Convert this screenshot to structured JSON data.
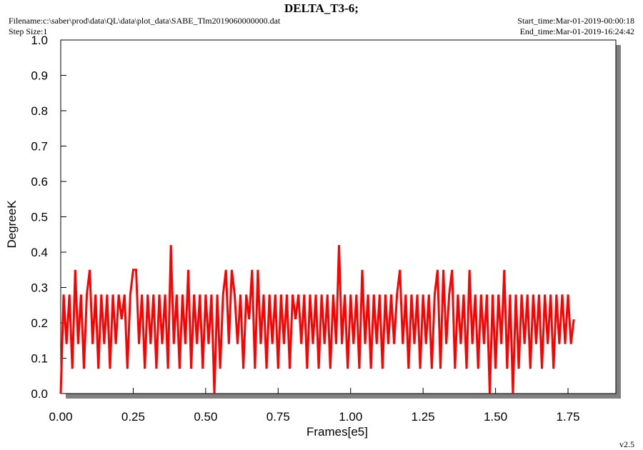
{
  "chart_data": {
    "type": "line",
    "title": "DELTA_T3-6;",
    "filename": "Filename:c:\\saber\\prod\\data\\QL\\data\\plot_data\\SABE_Tlm2019060000000.dat",
    "step_size": "Step Size:1",
    "start_time": "Start_time:Mar-01-2019-00:00:18",
    "end_time": "End_time:Mar-01-2019-16:24:42",
    "version": "v2.5",
    "x_label": "Frames[e5]",
    "y_label": "DegreeK",
    "xlim": [
      0,
      1.915
    ],
    "ylim": [
      0,
      1
    ],
    "xticks": [
      {
        "value": 0,
        "label": "0.00"
      },
      {
        "value": 0.25,
        "label": "0.25"
      },
      {
        "value": 0.5,
        "label": "0.50"
      },
      {
        "value": 0.75,
        "label": "0.75"
      },
      {
        "value": 1,
        "label": "1.00"
      },
      {
        "value": 1.25,
        "label": "1.25"
      },
      {
        "value": 1.5,
        "label": "1.50"
      },
      {
        "value": 1.75,
        "label": "1.75"
      }
    ],
    "yticks": [
      {
        "value": 0,
        "label": "0.0"
      },
      0.1,
      0.2,
      0.3,
      0.4,
      0.5,
      0.6,
      0.7,
      0.8,
      0.9,
      {
        "value": 1,
        "label": "1.0"
      }
    ],
    "series": [
      {
        "color": "#ff0000",
        "x": [
          0,
          0.01,
          0.02,
          0.03,
          0.04,
          0.05,
          0.06,
          0.07,
          0.08,
          0.09,
          0.1,
          0.11,
          0.12,
          0.13,
          0.14,
          0.15,
          0.16,
          0.17,
          0.18,
          0.19,
          0.2,
          0.21,
          0.22,
          0.23,
          0.24,
          0.25,
          0.26,
          0.27,
          0.28,
          0.29,
          0.3,
          0.31,
          0.32,
          0.33,
          0.34,
          0.35,
          0.36,
          0.37,
          0.38,
          0.39,
          0.4,
          0.41,
          0.42,
          0.43,
          0.44,
          0.45,
          0.46,
          0.47,
          0.48,
          0.49,
          0.5,
          0.51,
          0.52,
          0.53,
          0.54,
          0.55,
          0.56,
          0.57,
          0.58,
          0.59,
          0.6,
          0.61,
          0.62,
          0.63,
          0.64,
          0.65,
          0.66,
          0.67,
          0.68,
          0.69,
          0.7,
          0.71,
          0.72,
          0.73,
          0.74,
          0.75,
          0.76,
          0.77,
          0.78,
          0.79,
          0.8,
          0.81,
          0.82,
          0.83,
          0.84,
          0.85,
          0.86,
          0.87,
          0.88,
          0.89,
          0.9,
          0.91,
          0.92,
          0.93,
          0.94,
          0.95,
          0.96,
          0.97,
          0.98,
          0.99,
          1,
          1.01,
          1.02,
          1.03,
          1.04,
          1.05,
          1.06,
          1.07,
          1.08,
          1.09,
          1.1,
          1.11,
          1.12,
          1.13,
          1.14,
          1.15,
          1.16,
          1.17,
          1.18,
          1.19,
          1.2,
          1.21,
          1.22,
          1.23,
          1.24,
          1.25,
          1.26,
          1.27,
          1.28,
          1.29,
          1.3,
          1.31,
          1.32,
          1.33,
          1.34,
          1.35,
          1.36,
          1.37,
          1.38,
          1.39,
          1.4,
          1.41,
          1.42,
          1.43,
          1.44,
          1.45,
          1.46,
          1.47,
          1.48,
          1.49,
          1.5,
          1.51,
          1.52,
          1.53,
          1.54,
          1.55,
          1.56,
          1.57,
          1.58,
          1.59,
          1.6,
          1.61,
          1.62,
          1.63,
          1.64,
          1.65,
          1.66,
          1.67,
          1.68,
          1.69,
          1.7,
          1.71,
          1.72,
          1.73,
          1.74,
          1.75,
          1.76,
          1.77
        ],
        "values": [
          0.0,
          0.28,
          0.14,
          0.28,
          0.07,
          0.35,
          0.14,
          0.28,
          0.07,
          0.28,
          0.35,
          0.14,
          0.28,
          0.07,
          0.28,
          0.14,
          0.28,
          0.07,
          0.28,
          0.14,
          0.28,
          0.21,
          0.28,
          0.07,
          0.28,
          0.35,
          0.35,
          0.14,
          0.28,
          0.07,
          0.28,
          0.14,
          0.28,
          0.07,
          0.28,
          0.14,
          0.28,
          0.07,
          0.42,
          0.14,
          0.28,
          0.07,
          0.28,
          0.14,
          0.35,
          0.07,
          0.28,
          0.14,
          0.28,
          0.07,
          0.28,
          0.14,
          0.28,
          0.0,
          0.28,
          0.07,
          0.28,
          0.35,
          0.14,
          0.35,
          0.28,
          0.14,
          0.28,
          0.07,
          0.28,
          0.21,
          0.35,
          0.07,
          0.35,
          0.14,
          0.28,
          0.07,
          0.28,
          0.14,
          0.28,
          0.07,
          0.28,
          0.14,
          0.28,
          0.07,
          0.28,
          0.21,
          0.28,
          0.14,
          0.28,
          0.07,
          0.28,
          0.14,
          0.28,
          0.07,
          0.28,
          0.14,
          0.28,
          0.07,
          0.28,
          0.14,
          0.42,
          0.14,
          0.28,
          0.07,
          0.28,
          0.14,
          0.28,
          0.07,
          0.35,
          0.14,
          0.28,
          0.07,
          0.28,
          0.14,
          0.28,
          0.07,
          0.28,
          0.14,
          0.28,
          0.14,
          0.28,
          0.35,
          0.14,
          0.28,
          0.07,
          0.28,
          0.14,
          0.28,
          0.07,
          0.28,
          0.14,
          0.28,
          0.07,
          0.28,
          0.35,
          0.07,
          0.35,
          0.14,
          0.28,
          0.35,
          0.07,
          0.28,
          0.14,
          0.28,
          0.07,
          0.35,
          0.14,
          0.28,
          0.07,
          0.28,
          0.14,
          0.28,
          0.0,
          0.28,
          0.07,
          0.28,
          0.14,
          0.35,
          0.07,
          0.28,
          0.0,
          0.28,
          0.07,
          0.28,
          0.14,
          0.28,
          0.07,
          0.28,
          0.14,
          0.28,
          0.07,
          0.28,
          0.14,
          0.28,
          0.07,
          0.28,
          0.14,
          0.28,
          0.14,
          0.28,
          0.14,
          0.21
        ]
      }
    ]
  }
}
